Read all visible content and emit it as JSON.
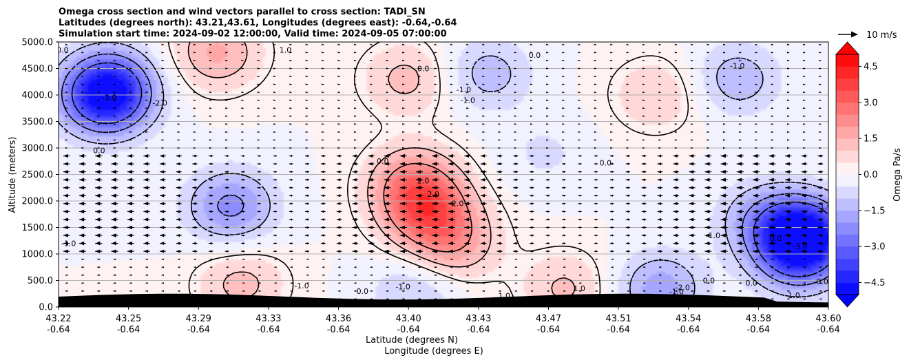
{
  "chart_data": {
    "type": "heatmap",
    "title_lines": [
      "Omega cross section and wind vectors parallel to cross section: TADI_SN",
      "Latitudes (degrees north): 43.21,43.61, Longitudes (degrees east): -0.64,-0.64",
      "Simulation start time: 2024-09-02 12:00:00, Valid time: 2024-09-05 07:00:00"
    ],
    "xlabel_lines": [
      "Latitude (degrees N)",
      "Longitude (degrees E)"
    ],
    "ylabel": "Altitude (meters)",
    "x_tick_lat": [
      "43.22",
      "43.25",
      "43.29",
      "43.33",
      "43.36",
      "43.40",
      "43.43",
      "43.47",
      "43.51",
      "43.54",
      "43.58",
      "43.60"
    ],
    "x_tick_lon": [
      "-0.64",
      "-0.64",
      "-0.64",
      "-0.64",
      "-0.64",
      "-0.64",
      "-0.64",
      "-0.64",
      "-0.64",
      "-0.64",
      "-0.64",
      "-0.64"
    ],
    "y_ticks": [
      "0.0",
      "500.0",
      "1000.0",
      "1500.0",
      "2000.0",
      "2500.0",
      "3000.0",
      "3500.0",
      "4000.0",
      "4500.0",
      "5000.0"
    ],
    "ylim": [
      0,
      5000
    ],
    "grid": "horizontal",
    "colorbar": {
      "label": "Omega Pa/s",
      "ticks": [
        "−4.5",
        "−3.0",
        "−1.5",
        "0.0",
        "1.5",
        "3.0",
        "4.5"
      ],
      "range": [
        -5.0,
        5.0
      ],
      "extend": "both",
      "colormap": "bwr"
    },
    "quiver_key": {
      "label": "10 m/s"
    },
    "contour_labels": [
      "-3.0",
      "-2.0",
      "0.0",
      "1.0",
      "0.0",
      "-1.0",
      "-1.0",
      "0.0",
      "-1.0",
      "0.0",
      "0.0",
      "2.0",
      "2.0",
      "2.0",
      "-1.0",
      "-1.0",
      "0.0",
      "-1.0",
      "1.0",
      "0.0",
      "-1.0",
      "0.0",
      "1.0",
      "-2.0",
      "-1.0",
      "0.0",
      "0.0",
      "-3.0",
      "-1.0",
      "1.0",
      "0.0"
    ],
    "omega_features": [
      {
        "lat": 43.243,
        "alt": 3900,
        "omega": -3.2
      },
      {
        "lat": 43.245,
        "alt": 4200,
        "omega": -2.6
      },
      {
        "lat": 43.305,
        "alt": 1900,
        "omega": -2.2
      },
      {
        "lat": 43.298,
        "alt": 4800,
        "omega": 1.6
      },
      {
        "lat": 43.402,
        "alt": 1800,
        "omega": 2.6
      },
      {
        "lat": 43.395,
        "alt": 2350,
        "omega": 2.0
      },
      {
        "lat": 43.415,
        "alt": 1200,
        "omega": 1.6
      },
      {
        "lat": 43.392,
        "alt": 4300,
        "omega": 1.2
      },
      {
        "lat": 43.432,
        "alt": 4400,
        "omega": -1.3
      },
      {
        "lat": 43.555,
        "alt": 4300,
        "omega": -1.4
      },
      {
        "lat": 43.587,
        "alt": 1400,
        "omega": -4.5
      },
      {
        "lat": 43.585,
        "alt": 950,
        "omega": -2.5
      },
      {
        "lat": 43.565,
        "alt": 1700,
        "omega": -1.2
      },
      {
        "lat": 43.515,
        "alt": 4000,
        "omega": 1.0
      },
      {
        "lat": 43.517,
        "alt": 350,
        "omega": -1.8
      },
      {
        "lat": 43.31,
        "alt": 450,
        "omega": 1.2
      },
      {
        "lat": 43.47,
        "alt": 350,
        "omega": 1.1
      },
      {
        "lat": 43.395,
        "alt": 250,
        "omega": -1.1
      },
      {
        "lat": 43.46,
        "alt": 2900,
        "omega": -0.6
      }
    ],
    "wind_parallel_ms": [
      {
        "alt_min": 0,
        "alt_max": 1000,
        "u": -2.5
      },
      {
        "alt_min": 1000,
        "alt_max": 3000,
        "u": -6.5
      },
      {
        "alt_min": 3000,
        "alt_max": 5000,
        "u": 2.0
      }
    ],
    "terrain": {
      "color": "#000000",
      "max_alt_m": 250
    }
  }
}
